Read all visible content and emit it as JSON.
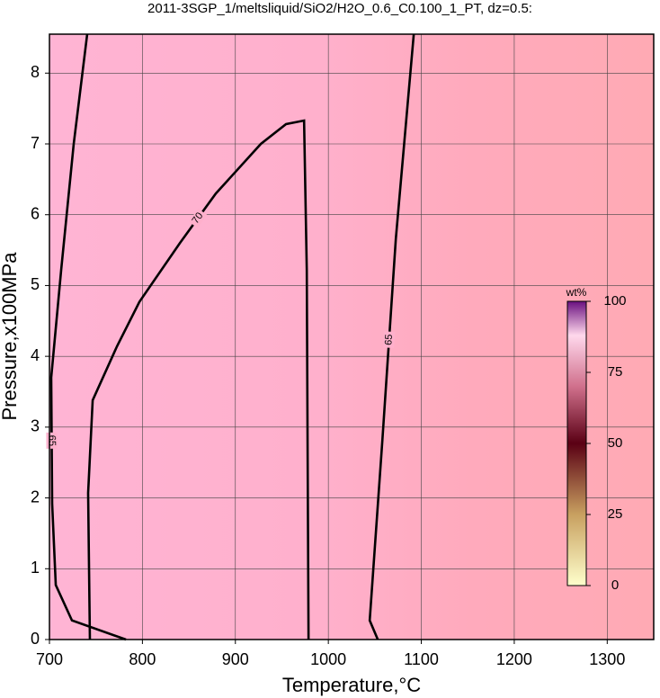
{
  "chart_data": {
    "type": "contour",
    "title": "2011-3SGP_1/meltsliquid/SiO2/H2O_0.6_C0.100_1_PT, dz=0.5:",
    "x_label": "Temperature,°C",
    "y_label": "Pressure,x100MPa",
    "xlim": [
      700,
      1350
    ],
    "xticks": [
      700,
      800,
      900,
      1000,
      1100,
      1200,
      1300
    ],
    "ylim": [
      0,
      8.55
    ],
    "yticks": [
      0,
      1,
      2,
      3,
      4,
      5,
      6,
      7,
      8
    ],
    "grid": true,
    "contours": [
      {
        "level": 65,
        "x": [
          740.6,
          726.1,
          712.6,
          701.9,
          702.9,
          706.8,
          724.2,
          782.3
        ],
        "y": [
          8.55,
          7.0,
          5.22,
          3.7,
          1.92,
          0.77,
          0.27,
          0
        ]
      },
      {
        "level": 70,
        "x": [
          743.5,
          741.6,
          746.5,
          772.6,
          796.8,
          840.3,
          879.0,
          927.4,
          954.5,
          973.9,
          976.8,
          977.7,
          978.7
        ],
        "y": [
          0,
          2.07,
          3.38,
          4.14,
          4.77,
          5.6,
          6.3,
          7.0,
          7.28,
          7.33,
          5.22,
          2.68,
          0
        ]
      },
      {
        "level": 65,
        "x": [
          1091.9,
          1072.6,
          1058.1,
          1044.5,
          1053.2
        ],
        "y": [
          8.55,
          5.66,
          2.81,
          0.27,
          0
        ]
      }
    ],
    "colorbar": {
      "label": "wt%",
      "lim": [
        0,
        100
      ],
      "ticks": [
        0,
        25,
        50,
        75,
        100
      ]
    }
  }
}
